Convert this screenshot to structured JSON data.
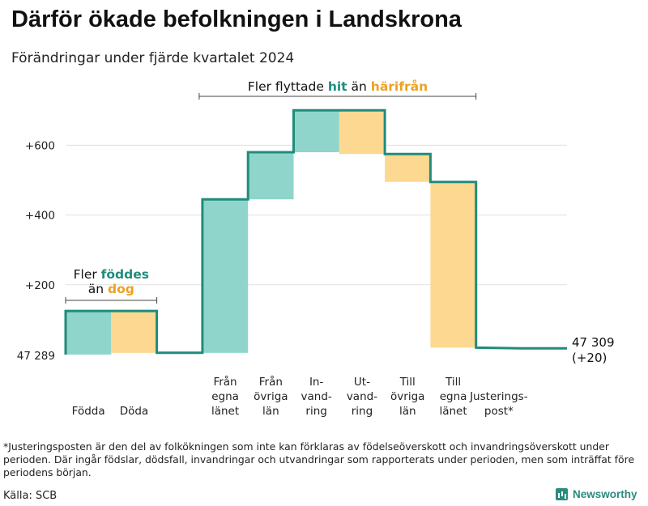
{
  "title": "Därför ökade befolkningen i Landskrona",
  "subtitle": "Förändringar under fjärde kvartalet 2024",
  "chart_data": {
    "type": "waterfall",
    "base_label": "47 289",
    "base": 47289,
    "end_label_value": "47 309",
    "end_label_change": "(+20)",
    "y_ticks": [
      {
        "value": 200,
        "label": "+200"
      },
      {
        "value": 400,
        "label": "+400"
      },
      {
        "value": 600,
        "label": "+600"
      }
    ],
    "ylim": [
      0,
      700
    ],
    "steps": [
      {
        "label_lines": [
          "Födda"
        ],
        "delta": 125,
        "kind": "inc"
      },
      {
        "label_lines": [
          "Döda"
        ],
        "delta": -120,
        "kind": "dec"
      },
      {
        "label_lines": [],
        "delta": 0,
        "kind": "gap"
      },
      {
        "label_lines": [
          "Från",
          "egna",
          "länet"
        ],
        "delta": 440,
        "kind": "inc"
      },
      {
        "label_lines": [
          "Från",
          "övriga",
          "län"
        ],
        "delta": 135,
        "kind": "inc"
      },
      {
        "label_lines": [
          "In-",
          "vand-",
          "ring"
        ],
        "delta": 120,
        "kind": "inc"
      },
      {
        "label_lines": [
          "Ut-",
          "vand-",
          "ring"
        ],
        "delta": -125,
        "kind": "dec"
      },
      {
        "label_lines": [
          "Till",
          "övriga",
          "län"
        ],
        "delta": -80,
        "kind": "dec"
      },
      {
        "label_lines": [
          "Till",
          "egna",
          "länet"
        ],
        "delta": -475,
        "kind": "dec"
      },
      {
        "label_lines": [
          "Justerings-",
          "post*"
        ],
        "delta": 0,
        "kind": "adj"
      }
    ],
    "annotations": {
      "natural": {
        "line1": "Fler",
        "strong1": "föddes",
        "line2": "än",
        "strong2": "dog"
      },
      "migration": {
        "prefix": "Fler flyttade",
        "strong1": "hit",
        "mid": "än",
        "strong2": "härifrån"
      }
    },
    "colors": {
      "increase": "#8fd5cb",
      "decrease": "#fcd891",
      "line": "#1f8c7c",
      "grid": "#e0e0e0",
      "inc_text": "#1f8c7c",
      "dec_text": "#f0a020"
    }
  },
  "footnote": "*Justeringsposten är den del av folkökningen som inte kan förklaras av födelseöverskott och invandringsöverskott under perioden. Där ingår födslar, dödsfall, invandringar och utvandringar som rapporterats under perioden, men som inträffat före periodens början.",
  "source": "Källa: SCB",
  "brand": "Newsworthy"
}
